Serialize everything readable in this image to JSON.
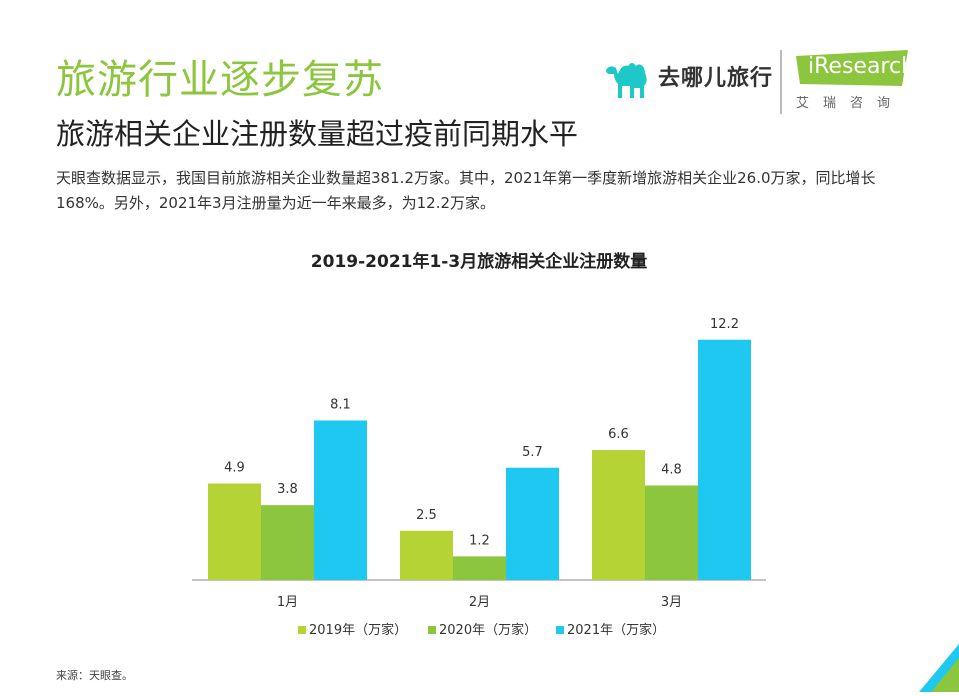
{
  "header": {
    "title": "旅游行业逐步复苏",
    "subtitle": "旅游相关企业注册数量超过疫前同期水平"
  },
  "logos": {
    "qunar_text": "去哪儿旅行",
    "iresearch_text": "iResearch",
    "iresearch_cn": "艾瑞咨询"
  },
  "description": "天眼查数据显示，我国目前旅游相关企业数量超381.2万家。其中，2021年第一季度新增旅游相关企业26.0万家，同比增长168%。另外，2021年3月注册量为近一年来最多，为12.2万家。",
  "source": "来源：天眼查。",
  "colors": {
    "title": "#8cc63f",
    "series_2019": "#b5d334",
    "series_2020": "#8cc63f",
    "series_2021": "#1ec8f0"
  },
  "chart_data": {
    "type": "bar",
    "title": "2019-2021年1-3月旅游相关企业注册数量",
    "categories": [
      "1月",
      "2月",
      "3月"
    ],
    "series": [
      {
        "name": "2019年（万家）",
        "values": [
          4.9,
          2.5,
          6.6
        ],
        "labels": [
          "4.9",
          "2.5",
          "6.6"
        ]
      },
      {
        "name": "2020年（万家）",
        "values": [
          3.8,
          1.2,
          4.8
        ],
        "labels": [
          "3.8",
          "1.2",
          "4.8"
        ]
      },
      {
        "name": "2021年（万家）",
        "values": [
          8.1,
          5.7,
          12.2
        ],
        "labels": [
          "8.1",
          "5.7",
          "12.2"
        ]
      }
    ],
    "ylim": [
      0,
      14
    ],
    "legend": "bottom",
    "grid": false
  }
}
